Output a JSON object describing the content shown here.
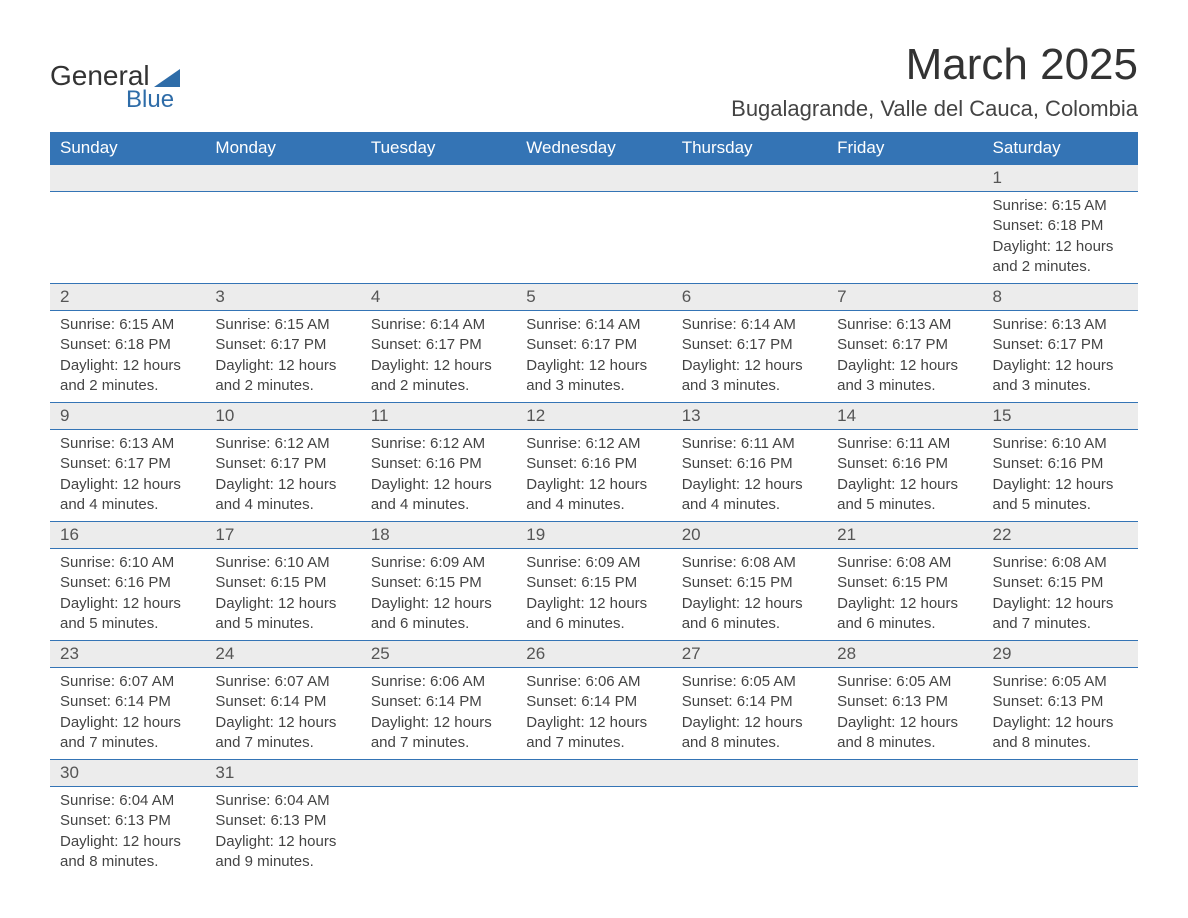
{
  "logo": {
    "text_top": "General",
    "text_bottom": "Blue",
    "brand_color": "#2e6ca8"
  },
  "title": "March 2025",
  "location": "Bugalagrande, Valle del Cauca, Colombia",
  "colors": {
    "header_bg": "#3474b5",
    "header_text": "#ffffff",
    "day_number_bg": "#ececec",
    "border": "#3474b5",
    "text": "#444444"
  },
  "day_headers": [
    "Sunday",
    "Monday",
    "Tuesday",
    "Wednesday",
    "Thursday",
    "Friday",
    "Saturday"
  ],
  "weeks": [
    [
      null,
      null,
      null,
      null,
      null,
      null,
      {
        "day": "1",
        "sunrise": "Sunrise: 6:15 AM",
        "sunset": "Sunset: 6:18 PM",
        "daylight": "Daylight: 12 hours and 2 minutes."
      }
    ],
    [
      {
        "day": "2",
        "sunrise": "Sunrise: 6:15 AM",
        "sunset": "Sunset: 6:18 PM",
        "daylight": "Daylight: 12 hours and 2 minutes."
      },
      {
        "day": "3",
        "sunrise": "Sunrise: 6:15 AM",
        "sunset": "Sunset: 6:17 PM",
        "daylight": "Daylight: 12 hours and 2 minutes."
      },
      {
        "day": "4",
        "sunrise": "Sunrise: 6:14 AM",
        "sunset": "Sunset: 6:17 PM",
        "daylight": "Daylight: 12 hours and 2 minutes."
      },
      {
        "day": "5",
        "sunrise": "Sunrise: 6:14 AM",
        "sunset": "Sunset: 6:17 PM",
        "daylight": "Daylight: 12 hours and 3 minutes."
      },
      {
        "day": "6",
        "sunrise": "Sunrise: 6:14 AM",
        "sunset": "Sunset: 6:17 PM",
        "daylight": "Daylight: 12 hours and 3 minutes."
      },
      {
        "day": "7",
        "sunrise": "Sunrise: 6:13 AM",
        "sunset": "Sunset: 6:17 PM",
        "daylight": "Daylight: 12 hours and 3 minutes."
      },
      {
        "day": "8",
        "sunrise": "Sunrise: 6:13 AM",
        "sunset": "Sunset: 6:17 PM",
        "daylight": "Daylight: 12 hours and 3 minutes."
      }
    ],
    [
      {
        "day": "9",
        "sunrise": "Sunrise: 6:13 AM",
        "sunset": "Sunset: 6:17 PM",
        "daylight": "Daylight: 12 hours and 4 minutes."
      },
      {
        "day": "10",
        "sunrise": "Sunrise: 6:12 AM",
        "sunset": "Sunset: 6:17 PM",
        "daylight": "Daylight: 12 hours and 4 minutes."
      },
      {
        "day": "11",
        "sunrise": "Sunrise: 6:12 AM",
        "sunset": "Sunset: 6:16 PM",
        "daylight": "Daylight: 12 hours and 4 minutes."
      },
      {
        "day": "12",
        "sunrise": "Sunrise: 6:12 AM",
        "sunset": "Sunset: 6:16 PM",
        "daylight": "Daylight: 12 hours and 4 minutes."
      },
      {
        "day": "13",
        "sunrise": "Sunrise: 6:11 AM",
        "sunset": "Sunset: 6:16 PM",
        "daylight": "Daylight: 12 hours and 4 minutes."
      },
      {
        "day": "14",
        "sunrise": "Sunrise: 6:11 AM",
        "sunset": "Sunset: 6:16 PM",
        "daylight": "Daylight: 12 hours and 5 minutes."
      },
      {
        "day": "15",
        "sunrise": "Sunrise: 6:10 AM",
        "sunset": "Sunset: 6:16 PM",
        "daylight": "Daylight: 12 hours and 5 minutes."
      }
    ],
    [
      {
        "day": "16",
        "sunrise": "Sunrise: 6:10 AM",
        "sunset": "Sunset: 6:16 PM",
        "daylight": "Daylight: 12 hours and 5 minutes."
      },
      {
        "day": "17",
        "sunrise": "Sunrise: 6:10 AM",
        "sunset": "Sunset: 6:15 PM",
        "daylight": "Daylight: 12 hours and 5 minutes."
      },
      {
        "day": "18",
        "sunrise": "Sunrise: 6:09 AM",
        "sunset": "Sunset: 6:15 PM",
        "daylight": "Daylight: 12 hours and 6 minutes."
      },
      {
        "day": "19",
        "sunrise": "Sunrise: 6:09 AM",
        "sunset": "Sunset: 6:15 PM",
        "daylight": "Daylight: 12 hours and 6 minutes."
      },
      {
        "day": "20",
        "sunrise": "Sunrise: 6:08 AM",
        "sunset": "Sunset: 6:15 PM",
        "daylight": "Daylight: 12 hours and 6 minutes."
      },
      {
        "day": "21",
        "sunrise": "Sunrise: 6:08 AM",
        "sunset": "Sunset: 6:15 PM",
        "daylight": "Daylight: 12 hours and 6 minutes."
      },
      {
        "day": "22",
        "sunrise": "Sunrise: 6:08 AM",
        "sunset": "Sunset: 6:15 PM",
        "daylight": "Daylight: 12 hours and 7 minutes."
      }
    ],
    [
      {
        "day": "23",
        "sunrise": "Sunrise: 6:07 AM",
        "sunset": "Sunset: 6:14 PM",
        "daylight": "Daylight: 12 hours and 7 minutes."
      },
      {
        "day": "24",
        "sunrise": "Sunrise: 6:07 AM",
        "sunset": "Sunset: 6:14 PM",
        "daylight": "Daylight: 12 hours and 7 minutes."
      },
      {
        "day": "25",
        "sunrise": "Sunrise: 6:06 AM",
        "sunset": "Sunset: 6:14 PM",
        "daylight": "Daylight: 12 hours and 7 minutes."
      },
      {
        "day": "26",
        "sunrise": "Sunrise: 6:06 AM",
        "sunset": "Sunset: 6:14 PM",
        "daylight": "Daylight: 12 hours and 7 minutes."
      },
      {
        "day": "27",
        "sunrise": "Sunrise: 6:05 AM",
        "sunset": "Sunset: 6:14 PM",
        "daylight": "Daylight: 12 hours and 8 minutes."
      },
      {
        "day": "28",
        "sunrise": "Sunrise: 6:05 AM",
        "sunset": "Sunset: 6:13 PM",
        "daylight": "Daylight: 12 hours and 8 minutes."
      },
      {
        "day": "29",
        "sunrise": "Sunrise: 6:05 AM",
        "sunset": "Sunset: 6:13 PM",
        "daylight": "Daylight: 12 hours and 8 minutes."
      }
    ],
    [
      {
        "day": "30",
        "sunrise": "Sunrise: 6:04 AM",
        "sunset": "Sunset: 6:13 PM",
        "daylight": "Daylight: 12 hours and 8 minutes."
      },
      {
        "day": "31",
        "sunrise": "Sunrise: 6:04 AM",
        "sunset": "Sunset: 6:13 PM",
        "daylight": "Daylight: 12 hours and 9 minutes."
      },
      null,
      null,
      null,
      null,
      null
    ]
  ]
}
